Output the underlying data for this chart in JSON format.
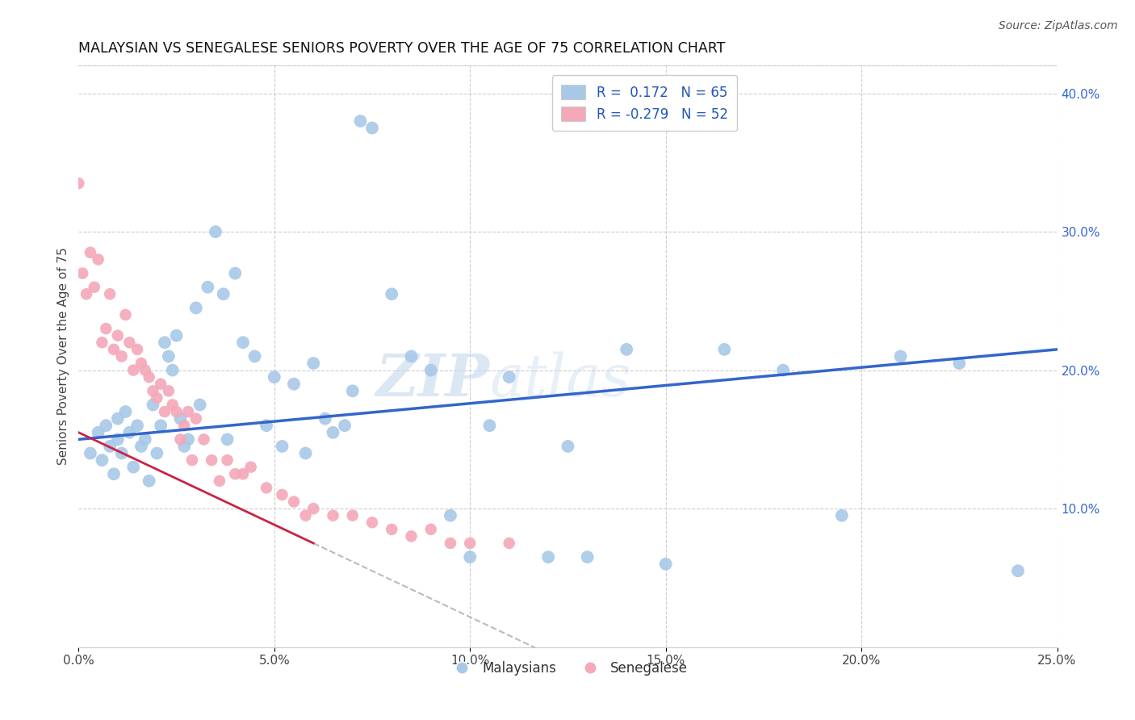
{
  "title": "MALAYSIAN VS SENEGALESE SENIORS POVERTY OVER THE AGE OF 75 CORRELATION CHART",
  "source": "Source: ZipAtlas.com",
  "ylabel": "Seniors Poverty Over the Age of 75",
  "xlabel_ticks": [
    "0.0%",
    "5.0%",
    "10.0%",
    "15.0%",
    "20.0%",
    "25.0%"
  ],
  "xlabel_vals": [
    0.0,
    5.0,
    10.0,
    15.0,
    20.0,
    25.0
  ],
  "ylabel_ticks_right": [
    "10.0%",
    "20.0%",
    "30.0%",
    "40.0%"
  ],
  "ylabel_vals_right": [
    10.0,
    20.0,
    30.0,
    40.0
  ],
  "xmin": 0.0,
  "xmax": 25.0,
  "ymin": 0.0,
  "ymax": 42.0,
  "legend_r1": "R =  0.172   N = 65",
  "legend_r2": "R = -0.279   N = 52",
  "blue_color": "#a8c8e8",
  "pink_color": "#f4a8b8",
  "blue_line_color": "#3366cc",
  "pink_line_color": "#cc2244",
  "watermark_zip": "ZIP",
  "watermark_atlas": "atlas",
  "malaysian_x": [
    0.3,
    0.5,
    0.6,
    0.7,
    0.8,
    0.9,
    1.0,
    1.0,
    1.1,
    1.2,
    1.3,
    1.4,
    1.5,
    1.6,
    1.7,
    1.8,
    1.9,
    2.0,
    2.1,
    2.2,
    2.3,
    2.4,
    2.5,
    2.6,
    2.7,
    2.8,
    3.0,
    3.1,
    3.3,
    3.5,
    3.7,
    4.0,
    4.2,
    4.5,
    4.8,
    5.0,
    5.2,
    5.5,
    5.8,
    6.0,
    6.3,
    6.5,
    7.0,
    7.2,
    7.5,
    8.0,
    8.5,
    9.0,
    9.5,
    10.0,
    10.5,
    11.0,
    12.0,
    12.5,
    13.0,
    14.0,
    15.0,
    16.5,
    18.0,
    19.5,
    21.0,
    22.5,
    24.0,
    3.8,
    6.8
  ],
  "malaysian_y": [
    14.0,
    15.5,
    13.5,
    16.0,
    14.5,
    12.5,
    15.0,
    16.5,
    14.0,
    17.0,
    15.5,
    13.0,
    16.0,
    14.5,
    15.0,
    12.0,
    17.5,
    14.0,
    16.0,
    22.0,
    21.0,
    20.0,
    22.5,
    16.5,
    14.5,
    15.0,
    24.5,
    17.5,
    26.0,
    30.0,
    25.5,
    27.0,
    22.0,
    21.0,
    16.0,
    19.5,
    14.5,
    19.0,
    14.0,
    20.5,
    16.5,
    15.5,
    18.5,
    38.0,
    37.5,
    25.5,
    21.0,
    20.0,
    9.5,
    6.5,
    16.0,
    19.5,
    6.5,
    14.5,
    6.5,
    21.5,
    6.0,
    21.5,
    20.0,
    9.5,
    21.0,
    20.5,
    5.5,
    15.0,
    16.0
  ],
  "senegalese_x": [
    0.0,
    0.1,
    0.2,
    0.3,
    0.4,
    0.5,
    0.6,
    0.7,
    0.8,
    0.9,
    1.0,
    1.1,
    1.2,
    1.3,
    1.4,
    1.5,
    1.6,
    1.7,
    1.8,
    1.9,
    2.0,
    2.1,
    2.2,
    2.3,
    2.4,
    2.5,
    2.6,
    2.7,
    2.8,
    2.9,
    3.0,
    3.2,
    3.4,
    3.6,
    3.8,
    4.0,
    4.2,
    4.4,
    4.8,
    5.2,
    5.5,
    5.8,
    6.0,
    6.5,
    7.0,
    7.5,
    8.0,
    8.5,
    9.0,
    9.5,
    10.0,
    11.0
  ],
  "senegalese_y": [
    33.5,
    27.0,
    25.5,
    28.5,
    26.0,
    28.0,
    22.0,
    23.0,
    25.5,
    21.5,
    22.5,
    21.0,
    24.0,
    22.0,
    20.0,
    21.5,
    20.5,
    20.0,
    19.5,
    18.5,
    18.0,
    19.0,
    17.0,
    18.5,
    17.5,
    17.0,
    15.0,
    16.0,
    17.0,
    13.5,
    16.5,
    15.0,
    13.5,
    12.0,
    13.5,
    12.5,
    12.5,
    13.0,
    11.5,
    11.0,
    10.5,
    9.5,
    10.0,
    9.5,
    9.5,
    9.0,
    8.5,
    8.0,
    8.5,
    7.5,
    7.5,
    7.5
  ],
  "mal_trend_x0": 0.0,
  "mal_trend_y0": 15.0,
  "mal_trend_x1": 25.0,
  "mal_trend_y1": 21.5,
  "sen_trend_x0": 0.0,
  "sen_trend_y0": 15.5,
  "sen_trend_x1": 6.0,
  "sen_trend_y1": 7.5,
  "sen_dash_x0": 6.0,
  "sen_dash_x1": 25.0
}
